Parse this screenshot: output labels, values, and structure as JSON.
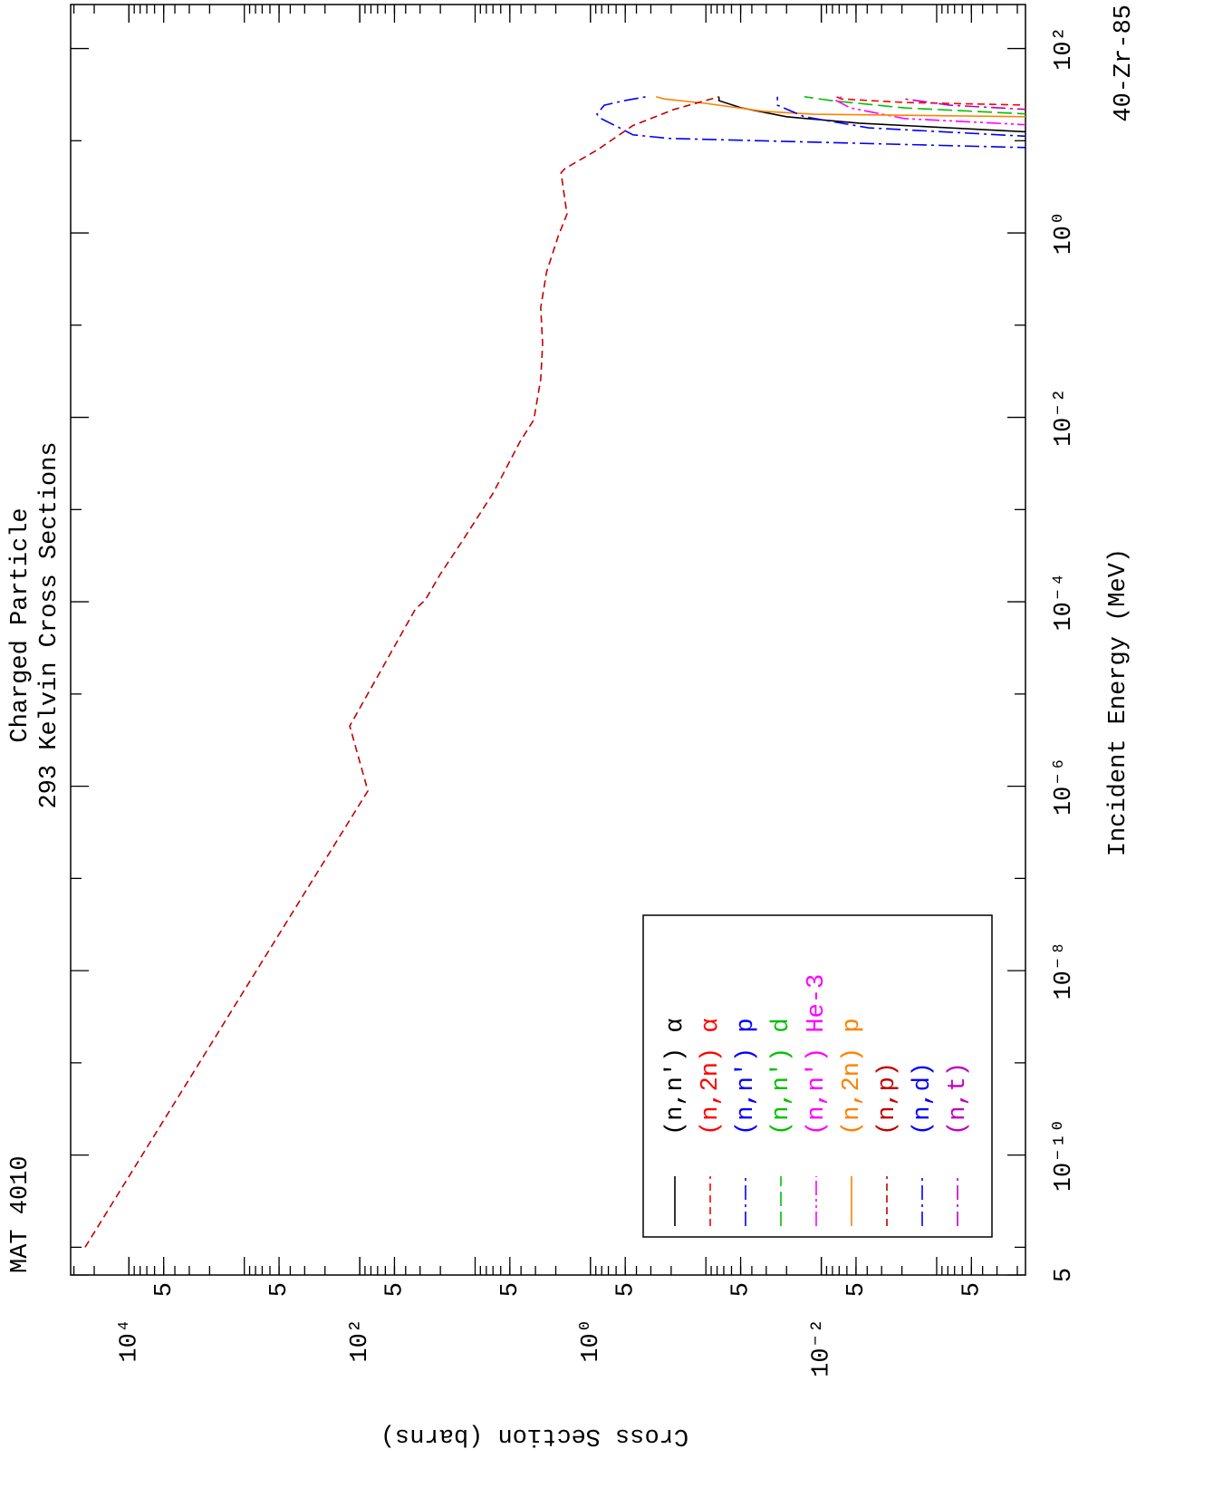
{
  "chart_data": {
    "type": "line",
    "title": "MAT 4010",
    "subtitle": [
      "Charged Particle",
      "293 Kelvin Cross Sections"
    ],
    "material": "40-Zr-85",
    "x_label": "Incident Energy (MeV)",
    "y_label": "Cross Section (barns)",
    "xscale": "log",
    "yscale": "log",
    "xlim": [
      5e-12,
      300
    ],
    "ylim": [
      0.00017,
      32000
    ],
    "xticks": [
      {
        "value": 5e-12,
        "label": "5"
      },
      {
        "value": 1e-10,
        "label": "10⁻¹⁰"
      },
      {
        "value": 1e-08,
        "label": "10⁻⁸"
      },
      {
        "value": 1e-06,
        "label": "10⁻⁶"
      },
      {
        "value": 0.0001,
        "label": "10⁻⁴"
      },
      {
        "value": 0.01,
        "label": "10⁻²"
      },
      {
        "value": 1,
        "label": "10⁰"
      },
      {
        "value": 100,
        "label": "10²"
      }
    ],
    "xminor_ticks": [
      1e-11,
      1e-09,
      1e-07,
      1e-05,
      0.001,
      0.1,
      10
    ],
    "yticks": [
      {
        "value": 0.0005,
        "label": "5"
      },
      {
        "value": 0.005,
        "label": "5"
      },
      {
        "value": 0.01,
        "label": "10⁻²"
      },
      {
        "value": 0.05,
        "label": "5"
      },
      {
        "value": 0.5,
        "label": "5"
      },
      {
        "value": 1,
        "label": "10⁰"
      },
      {
        "value": 5,
        "label": "5"
      },
      {
        "value": 50,
        "label": "5"
      },
      {
        "value": 100,
        "label": "10²"
      },
      {
        "value": 500,
        "label": "5"
      },
      {
        "value": 5000,
        "label": "5"
      },
      {
        "value": 10000,
        "label": "10⁴"
      }
    ],
    "yminor_ticks": true,
    "orientation": "rotated",
    "legend": "lower-left",
    "series": [
      {
        "name": "(n,n') α",
        "color": "#000000",
        "dash": "solid",
        "x": [
          12.4,
          15.5,
          18.2,
          22.7,
          27.2,
          30
        ],
        "values": [
          0.00015,
          0.0047,
          0.02,
          0.049,
          0.077,
          0.077
        ]
      },
      {
        "name": "(n,2n) α",
        "color": "#ff0000",
        "dash": "dashed",
        "x": [
          24.3,
          26,
          28.4,
          30
        ],
        "values": [
          0.00015,
          0.0019,
          0.0067,
          0.0074
        ]
      },
      {
        "name": "(n,n') p",
        "color": "#0000ff",
        "dash": "dashdot",
        "x": [
          8.4,
          10.6,
          11.6,
          13.8,
          17.4,
          19.4,
          24.3,
          27.2,
          30
        ],
        "values": [
          0.00015,
          0.21,
          0.43,
          0.56,
          0.81,
          0.88,
          0.76,
          0.51,
          0.33
        ]
      },
      {
        "name": "(n,n') d",
        "color": "#00c000",
        "dash": "longdash",
        "x": [
          19.4,
          22.7,
          27.2,
          30
        ],
        "values": [
          0.00015,
          0.0019,
          0.0081,
          0.014
        ]
      },
      {
        "name": "(n,n') He-3",
        "color": "#ff00ff",
        "dash": "dashdotdot",
        "x": [
          14.8,
          17.4,
          22.7,
          27.2,
          30
        ],
        "values": [
          0.00015,
          0.0019,
          0.0056,
          0.0074,
          0.0067
        ]
      },
      {
        "name": "(n,2n) p",
        "color": "#ff8000",
        "dash": "solid",
        "x": [
          18.2,
          19.4,
          20.8,
          25.4,
          28.4,
          30
        ],
        "values": [
          0.00015,
          0.0116,
          0.031,
          0.1,
          0.23,
          0.27
        ]
      },
      {
        "name": "(n,p)",
        "color": "#c00000",
        "dash": "dashed",
        "x": [
          1e-11,
          8.9e-07,
          4.5e-06,
          8.3e-05,
          0.000105,
          0.0002,
          0.00045,
          0.0015,
          0.0054,
          0.0094,
          0.026,
          0.063,
          0.155,
          0.38,
          0.93,
          1.6,
          4.5,
          5.0,
          7.9,
          14.6,
          21.8,
          30
        ],
        "values": [
          24000,
          85,
          122,
          33,
          27,
          20,
          13,
          7,
          4.1,
          3.1,
          2.7,
          2.6,
          2.7,
          2.4,
          1.9,
          1.6,
          1.8,
          1.66,
          0.88,
          0.43,
          0.19,
          0.077
        ]
      },
      {
        "name": "(n,d)",
        "color": "#0000ff",
        "dash": "dashdot",
        "x": [
          11.1,
          13.8,
          18.2,
          24.3,
          30
        ],
        "values": [
          0.00015,
          0.0039,
          0.014,
          0.024,
          0.024
        ]
      },
      {
        "name": "(n,t)",
        "color": "#c000c0",
        "dash": "dashdot",
        "x": [
          21.7,
          24.3,
          28.4,
          30
        ],
        "values": [
          0.00015,
          0.00077,
          0.0019,
          0.0019
        ]
      }
    ]
  }
}
